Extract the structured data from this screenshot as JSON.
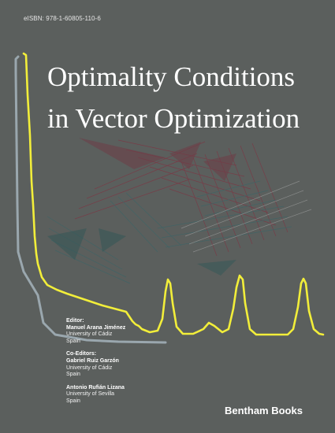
{
  "cover": {
    "isbn": "eISBN: 978-1-60805-110-6",
    "title_line1": "Optimality Conditions",
    "title_line2": "in Vector Optimization",
    "editor_heading": "Editor:",
    "editor": {
      "name": "Manuel Arana Jiménez",
      "affiliation": "University of Cádiz",
      "country": "Spain"
    },
    "coeditors_heading": "Co-Editors:",
    "coeditors": [
      {
        "name": "Gabriel Ruiz Garzón",
        "affiliation": "University of Cádiz",
        "country": "Spain"
      },
      {
        "name": "Antonio Rufián Lizana",
        "affiliation": "University of Sevilla",
        "country": "Spain"
      }
    ],
    "publisher": "Bentham Books"
  },
  "colors": {
    "background": "#5b5f5d",
    "curve_yellow": "#f2ee3a",
    "curve_grey": "#9aa7ae",
    "hatch_red": "#7a3a46",
    "hatch_teal": "#3f6466"
  }
}
